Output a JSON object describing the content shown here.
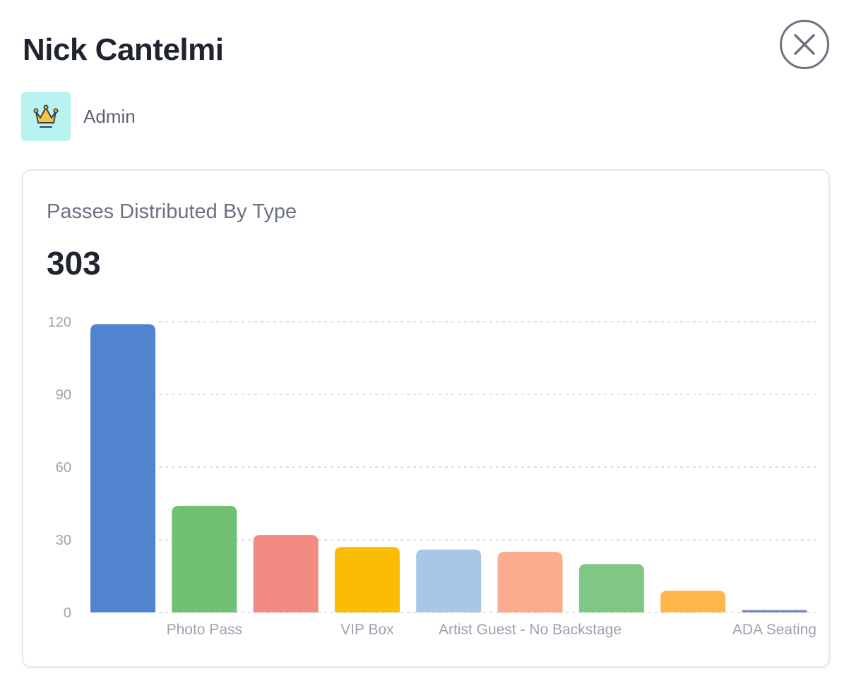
{
  "user": {
    "name": "Nick Cantelmi",
    "role": "Admin",
    "role_icon": "crown-icon"
  },
  "close_icon": "close-icon",
  "card": {
    "title": "Passes Distributed By Type",
    "total": "303"
  },
  "colors": {
    "role_badge_bg": "#b8f2f1",
    "crown": "#f5c545"
  },
  "chart_data": {
    "type": "bar",
    "title": "",
    "xlabel": "",
    "ylabel": "",
    "ylim": [
      0,
      120
    ],
    "yticks": [
      "0",
      "30",
      "60",
      "90",
      "120"
    ],
    "grid": true,
    "categories": [
      "",
      "Photo Pass",
      "",
      "VIP Box",
      "",
      "Artist Guest - No Backstage",
      "",
      "",
      "ADA Seating"
    ],
    "values": [
      119,
      44,
      32,
      27,
      26,
      25,
      20,
      9,
      1
    ],
    "colors": [
      "#5184cf",
      "#70bf73",
      "#f28b82",
      "#fbbc04",
      "#a8c7e6",
      "#fdab8f",
      "#81c784",
      "#ffb74d",
      "#7986cb"
    ]
  }
}
